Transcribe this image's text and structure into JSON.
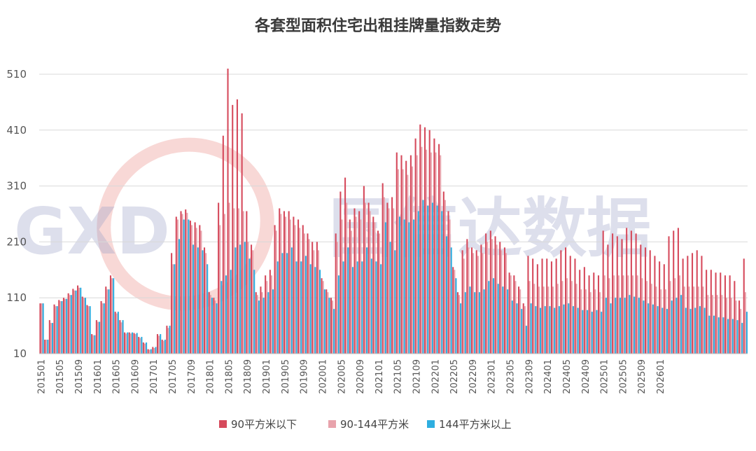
{
  "chart_data": {
    "type": "bar",
    "title": "各套型面积住宅出租挂牌量指数走势",
    "xlabel": "",
    "ylabel": "",
    "ylim": [
      10,
      530
    ],
    "yticks": [
      10,
      110,
      210,
      310,
      410,
      510
    ],
    "grid": true,
    "legend_position": "bottom",
    "start_month": "201501",
    "x_tick_labels": [
      "201501",
      "201505",
      "201509",
      "201601",
      "201605",
      "201609",
      "201701",
      "201705",
      "201709",
      "201801",
      "201805",
      "201809",
      "201901",
      "201905",
      "201909",
      "202001",
      "202005",
      "202009",
      "202101",
      "202105",
      "202109",
      "202201",
      "202205",
      "202209",
      "202301",
      "202305",
      "202309",
      "202401",
      "202405",
      "202409",
      "202501",
      "202505",
      "202509",
      "202601"
    ],
    "series": [
      {
        "name": "90平方米以下",
        "color": "#d64a5c",
        "values": [
          100,
          35,
          70,
          98,
          106,
          110,
          118,
          126,
          132,
          112,
          97,
          45,
          70,
          104,
          130,
          150,
          85,
          70,
          48,
          48,
          47,
          40,
          30,
          18,
          22,
          45,
          35,
          60,
          190,
          255,
          265,
          268,
          248,
          245,
          240,
          200,
          120,
          110,
          280,
          400,
          520,
          455,
          465,
          440,
          265,
          205,
          120,
          130,
          150,
          160,
          240,
          270,
          265,
          265,
          255,
          250,
          240,
          225,
          210,
          210,
          145,
          125,
          110,
          225,
          300,
          325,
          250,
          270,
          265,
          310,
          280,
          255,
          230,
          315,
          280,
          290,
          370,
          365,
          355,
          365,
          395,
          420,
          415,
          410,
          395,
          385,
          300,
          265,
          165,
          120,
          195,
          215,
          200,
          195,
          205,
          225,
          230,
          220,
          210,
          200,
          155,
          150,
          130,
          100,
          185,
          180,
          170,
          180,
          180,
          175,
          180,
          195,
          200,
          185,
          180,
          160,
          165,
          150,
          155,
          150,
          230,
          205,
          225,
          220,
          215,
          235,
          230,
          225,
          205,
          200,
          195,
          185,
          175,
          170,
          220,
          230,
          235,
          180,
          185,
          190,
          195,
          185,
          160,
          160,
          155,
          155,
          150,
          150,
          140,
          105,
          180
        ]
      },
      {
        "name": "90-144平方米",
        "color": "#e8a3ac",
        "values": [
          100,
          35,
          65,
          95,
          104,
          108,
          115,
          123,
          128,
          110,
          95,
          43,
          67,
          100,
          125,
          145,
          82,
          66,
          46,
          46,
          45,
          38,
          28,
          17,
          20,
          42,
          33,
          56,
          170,
          250,
          260,
          262,
          240,
          235,
          230,
          190,
          115,
          105,
          240,
          260,
          280,
          270,
          270,
          265,
          210,
          195,
          115,
          120,
          140,
          150,
          230,
          260,
          255,
          250,
          240,
          235,
          225,
          215,
          195,
          195,
          140,
          120,
          105,
          210,
          250,
          280,
          230,
          255,
          250,
          280,
          265,
          245,
          225,
          290,
          270,
          270,
          340,
          340,
          330,
          345,
          365,
          380,
          375,
          370,
          370,
          365,
          285,
          250,
          160,
          115,
          180,
          200,
          190,
          185,
          190,
          210,
          215,
          205,
          195,
          190,
          150,
          140,
          125,
          95,
          140,
          135,
          130,
          130,
          130,
          130,
          135,
          140,
          145,
          140,
          135,
          125,
          125,
          120,
          125,
          120,
          150,
          145,
          150,
          150,
          150,
          150,
          150,
          150,
          145,
          140,
          135,
          130,
          125,
          125,
          140,
          145,
          150,
          130,
          130,
          130,
          130,
          130,
          115,
          115,
          115,
          115,
          110,
          110,
          105,
          90,
          120
        ]
      },
      {
        "name": "144平方米以上",
        "color": "#2eaee0",
        "values": [
          100,
          35,
          65,
          95,
          104,
          108,
          115,
          123,
          128,
          110,
          95,
          43,
          67,
          100,
          125,
          145,
          85,
          70,
          48,
          48,
          47,
          40,
          30,
          18,
          22,
          45,
          35,
          60,
          170,
          215,
          250,
          250,
          205,
          200,
          195,
          170,
          110,
          100,
          140,
          150,
          160,
          200,
          205,
          210,
          180,
          160,
          105,
          110,
          120,
          125,
          175,
          190,
          190,
          200,
          175,
          175,
          185,
          170,
          165,
          160,
          125,
          110,
          90,
          150,
          175,
          200,
          165,
          175,
          175,
          200,
          180,
          175,
          170,
          245,
          210,
          195,
          255,
          250,
          245,
          250,
          265,
          285,
          275,
          280,
          275,
          265,
          220,
          200,
          145,
          100,
          120,
          130,
          120,
          120,
          125,
          140,
          145,
          135,
          130,
          125,
          105,
          100,
          90,
          60,
          100,
          95,
          92,
          95,
          95,
          92,
          95,
          98,
          100,
          95,
          92,
          88,
          88,
          85,
          88,
          85,
          110,
          100,
          110,
          110,
          110,
          115,
          112,
          110,
          105,
          100,
          98,
          95,
          92,
          90,
          105,
          110,
          115,
          92,
          90,
          92,
          95,
          92,
          78,
          78,
          75,
          75,
          72,
          72,
          70,
          65,
          85
        ]
      }
    ]
  },
  "watermark": {
    "logo_text": "GXD",
    "brand_text": "国信达数据"
  }
}
